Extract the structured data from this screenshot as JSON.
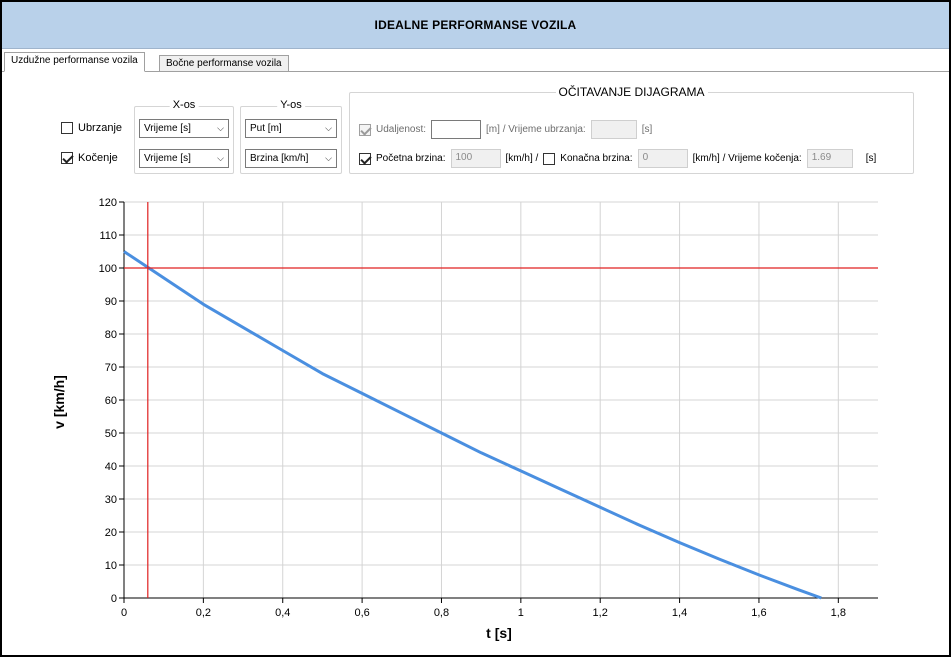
{
  "window": {
    "title": "IDEALNE PERFORMANSE VOZILA"
  },
  "tabs": [
    {
      "label": "Uzdužne performanse vozila",
      "active": true
    },
    {
      "label": "Bočne performanse vozila",
      "active": false
    }
  ],
  "modes": {
    "ubrzanje": {
      "label": "Ubrzanje",
      "checked": false
    },
    "kocenje": {
      "label": "Kočenje",
      "checked": true
    }
  },
  "x_axis_group": {
    "label": "X-os",
    "ubrzanje_value": "Vrijeme [s]",
    "kocenje_value": "Vrijeme [s]"
  },
  "y_axis_group": {
    "label": "Y-os",
    "ubrzanje_value": "Put [m]",
    "kocenje_value": "Brzina [km/h]"
  },
  "readout": {
    "label": "OČITAVANJE DIJAGRAMA",
    "row1": {
      "checkbox_label": "Udaljenost:",
      "checked": true,
      "distance_value": "",
      "unit1": "[m]  /  Vrijeme ubrzanja:",
      "time_value": "",
      "unit2": "[s]"
    },
    "row2": {
      "checkbox_label": "Početna brzina:",
      "checked": true,
      "start_speed": "100",
      "unit1": "[km/h]  /",
      "end_checkbox_label": "Konačna brzina:",
      "end_checked": false,
      "end_speed": "0",
      "unit2": "[km/h]  /  Vrijeme kočenja:",
      "braking_time": "1.69",
      "unit3": "[s]"
    }
  },
  "chart_data": {
    "type": "line",
    "xlabel": "t [s]",
    "ylabel": "v [km/h]",
    "xlim": [
      0,
      1.9
    ],
    "ylim": [
      0,
      120
    ],
    "x_ticks": [
      0,
      0.2,
      0.4,
      0.6,
      0.8,
      1,
      1.2,
      1.4,
      1.6,
      1.8
    ],
    "x_tick_labels": [
      "0",
      "0,2",
      "0,4",
      "0,6",
      "0,8",
      "1",
      "1,2",
      "1,4",
      "1,6",
      "1,8"
    ],
    "y_ticks": [
      0,
      10,
      20,
      30,
      40,
      50,
      60,
      70,
      80,
      90,
      100,
      110,
      120
    ],
    "grid": true,
    "series": [
      {
        "color": "#4a8fe0",
        "x": [
          0,
          0.1,
          0.2,
          0.3,
          0.4,
          0.5,
          0.6,
          0.7,
          0.8,
          0.9,
          1.0,
          1.1,
          1.2,
          1.3,
          1.4,
          1.5,
          1.6,
          1.7,
          1.757
        ],
        "y": [
          105,
          97,
          89,
          82,
          75,
          68,
          62,
          56,
          50,
          44,
          38.5,
          33,
          27.5,
          22,
          16.8,
          11.8,
          7,
          2.5,
          0
        ]
      }
    ],
    "marker_lines": {
      "color": "#e02020",
      "x": 0.06,
      "y": 100
    }
  }
}
